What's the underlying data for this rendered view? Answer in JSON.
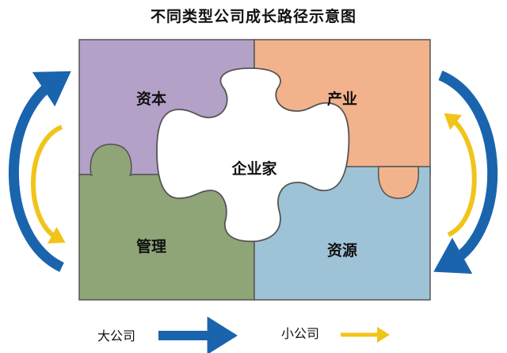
{
  "title": "不同类型公司成长路径示意图",
  "pieces": {
    "top_left": "资本",
    "top_right": "产业",
    "bottom_left": "管理",
    "bottom_right": "资源",
    "center": "企业家"
  },
  "legend": {
    "large_company": "大公司",
    "small_company": "小公司"
  },
  "colors": {
    "capital": "#b3a1c8",
    "industry": "#f2b28c",
    "management": "#8fa577",
    "resources": "#9fc3d6",
    "center": "#ffffff",
    "large_arrow": "#1a64ad",
    "small_arrow": "#f1c41a"
  }
}
